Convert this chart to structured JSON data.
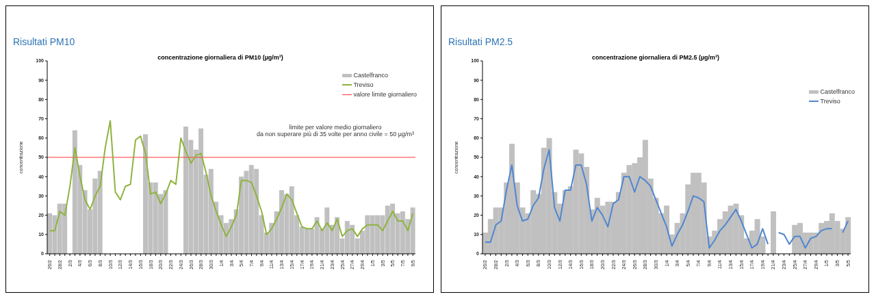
{
  "chart_data": [
    {
      "type": "bar",
      "title": "Risultati PM10",
      "subtitle": "concentrazione giornaliera di PM10 (µg/m³)",
      "ylabel": "concentrazione",
      "categories": [
        "26/2",
        null,
        "28/2",
        null,
        "2/3",
        null,
        "4/3",
        null,
        "6/3",
        null,
        "8/3",
        null,
        "10/3",
        null,
        "12/3",
        null,
        "14/3",
        null,
        "16/3",
        null,
        "18/3",
        null,
        "20/3",
        null,
        "22/3",
        null,
        "24/3",
        null,
        "26/3",
        null,
        "28/3",
        null,
        "30/3",
        null,
        "1/4",
        null,
        "3/4",
        null,
        "5/4",
        null,
        "7/4",
        null,
        "9/4",
        null,
        "11/4",
        null,
        "13/4",
        null,
        "15/4",
        null,
        "17/4",
        null,
        "19/4",
        null,
        "21/4",
        null,
        "23/4",
        null,
        "25/4",
        null,
        "27/4",
        null,
        "29/4",
        null,
        "1/5",
        null,
        "3/5",
        null,
        "5/5",
        null,
        "7/5",
        null,
        "9/5"
      ],
      "series": [
        {
          "name": "Castelfranco",
          "color": "#c0c0c0",
          "values": [
            21,
            20,
            26,
            26,
            null,
            64,
            46,
            33,
            23,
            39,
            43,
            null,
            null,
            null,
            null,
            null,
            null,
            null,
            null,
            62,
            37,
            37,
            31,
            33,
            null,
            null,
            null,
            66,
            59,
            54,
            65,
            41,
            44,
            27,
            20,
            16,
            18,
            23,
            40,
            43,
            46,
            44,
            20,
            11,
            16,
            22,
            33,
            31,
            35,
            20,
            14,
            13,
            13,
            19,
            13,
            24,
            15,
            19,
            8,
            17,
            15,
            8,
            12,
            20,
            20,
            20,
            20,
            25,
            26,
            21,
            22,
            18,
            24
          ]
        },
        {
          "name": "Treviso",
          "type": "line",
          "color": "#8fb33e",
          "values": [
            12,
            12,
            22,
            20,
            35,
            55,
            40,
            28,
            23,
            30,
            35,
            55,
            69,
            32,
            28,
            35,
            36,
            59,
            61,
            52,
            31,
            32,
            26,
            31,
            38,
            36,
            60,
            53,
            47,
            51,
            52,
            42,
            30,
            22,
            15,
            9,
            14,
            20,
            38,
            38,
            37,
            30,
            22,
            10,
            13,
            18,
            24,
            31,
            28,
            21,
            14,
            13,
            13,
            17,
            12,
            16,
            12,
            18,
            9,
            12,
            13,
            9,
            13,
            15,
            15,
            15,
            12,
            17,
            22,
            17,
            17,
            12,
            21
          ]
        }
      ],
      "ref_lines": [
        {
          "axis": "y",
          "value": 50,
          "label": "valore limite giornaliero",
          "color": "#ff3333"
        }
      ],
      "annotations": [
        "limite per valore medio giornaliero\nda non superare più di 35 volte per anno civile = 50 µg/m³"
      ],
      "ylim": [
        0,
        100
      ],
      "yticks": [
        0,
        10,
        20,
        30,
        40,
        50,
        60,
        70,
        80,
        90,
        100
      ],
      "legend": "top right"
    },
    {
      "type": "bar",
      "title": "Risultati PM2.5",
      "subtitle": "concentrazione giornaliera di PM2.5 (µg/m³)",
      "ylabel": "concentrazione",
      "categories": [
        "26/2",
        null,
        "28/2",
        null,
        "2/3",
        null,
        "4/3",
        null,
        "6/3",
        null,
        "8/3",
        null,
        "10/3",
        null,
        "12/3",
        null,
        "14/3",
        null,
        "16/3",
        null,
        "18/3",
        null,
        "20/3",
        null,
        "22/3",
        null,
        "24/3",
        null,
        "26/3",
        null,
        "28/3",
        null,
        "30/3",
        null,
        "1/4",
        null,
        "3/4",
        null,
        "5/4",
        null,
        "7/4",
        null,
        "9/4",
        null,
        "11/4",
        null,
        "13/4",
        null,
        "15/4",
        null,
        "17/4",
        null,
        "19/4",
        null,
        "21/4",
        null,
        "23/4",
        null,
        "25/4",
        null,
        "27/4",
        null,
        "29/4",
        null,
        "1/5",
        null,
        "3/5",
        null,
        "5/5"
      ],
      "series": [
        {
          "name": "Castelfranco",
          "color": "#c0c0c0",
          "values": [
            11,
            18,
            24,
            24,
            37,
            57,
            37,
            24,
            21,
            33,
            31,
            55,
            60,
            32,
            26,
            33,
            35,
            54,
            52,
            45,
            23,
            29,
            25,
            27,
            27,
            32,
            42,
            46,
            47,
            50,
            59,
            39,
            29,
            21,
            25,
            10,
            16,
            21,
            36,
            42,
            42,
            37,
            9,
            12,
            18,
            22,
            25,
            26,
            20,
            8,
            12,
            18,
            9,
            null,
            22,
            null,
            null,
            null,
            15,
            16,
            11,
            11,
            11,
            16,
            17,
            21,
            17,
            13,
            19
          ]
        },
        {
          "name": "Treviso",
          "type": "line",
          "color": "#4f86d0",
          "values": [
            6,
            6,
            15,
            17,
            33,
            46,
            25,
            17,
            18,
            25,
            29,
            44,
            54,
            24,
            17,
            33,
            33,
            46,
            46,
            36,
            17,
            24,
            20,
            14,
            26,
            28,
            40,
            40,
            32,
            40,
            38,
            35,
            28,
            21,
            14,
            4,
            10,
            15,
            22,
            30,
            29,
            27,
            3,
            7,
            12,
            15,
            19,
            23,
            17,
            10,
            3,
            5,
            13,
            5,
            null,
            11,
            10,
            5,
            9,
            9,
            3,
            8,
            9,
            12,
            13,
            13,
            null,
            11,
            17
          ]
        }
      ],
      "ylim": [
        0,
        100
      ],
      "yticks": [
        0,
        10,
        20,
        30,
        40,
        50,
        60,
        70,
        80,
        90,
        100
      ],
      "legend": "right"
    }
  ]
}
